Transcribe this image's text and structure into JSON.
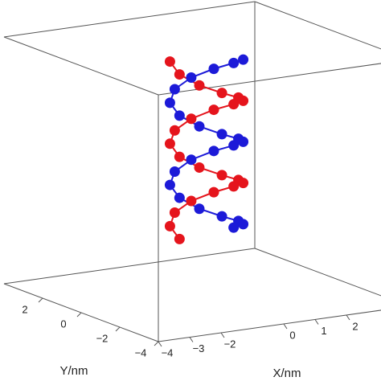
{
  "chart_data": {
    "type": "scatter3d",
    "xlabel": "X/nm",
    "ylabel": "Y/nm",
    "xlim": [
      -4,
      4
    ],
    "ylim": [
      -4,
      4
    ],
    "zlim": [
      0,
      10
    ],
    "xticks": [
      {
        "value": -4,
        "label": "−4"
      },
      {
        "value": -3,
        "label": "−3"
      },
      {
        "value": -2,
        "label": "−2"
      },
      0,
      1,
      2
    ],
    "yticks": [
      2,
      0,
      {
        "value": -2,
        "label": "−2"
      },
      {
        "value": -4,
        "label": "−4"
      }
    ],
    "series": [
      {
        "color": "#1c1ad8",
        "x": [
          0.91,
          0.98,
          0.68,
          0.12,
          -0.48,
          -0.91,
          -0.98,
          -0.68,
          -0.12,
          0.48,
          0.91,
          0.98,
          0.68,
          0.12,
          -0.48,
          -0.91,
          -0.98,
          -0.68,
          -0.12,
          0.48,
          0.91,
          0.98
        ],
        "y": [
          -0.42,
          0.19,
          0.73,
          0.99,
          0.87,
          0.42,
          -0.19,
          -0.73,
          -0.99,
          -0.87,
          -0.42,
          0.19,
          0.73,
          0.99,
          0.87,
          0.42,
          -0.19,
          -0.73,
          -0.99,
          -0.87,
          -0.42,
          0.19
        ],
        "z": [
          9.5,
          9.17,
          8.83,
          8.5,
          8.17,
          7.83,
          7.5,
          7.17,
          6.83,
          6.5,
          6.17,
          5.83,
          5.5,
          5.17,
          4.83,
          4.5,
          4.17,
          3.83,
          3.5,
          3.17,
          2.83,
          2.5
        ]
      },
      {
        "color": "#e5141c",
        "x": [
          -0.91,
          -0.98,
          -0.68,
          -0.12,
          0.48,
          0.91,
          0.98,
          0.68,
          0.12,
          -0.48,
          -0.91,
          -0.98,
          -0.68,
          -0.12,
          0.48,
          0.91,
          0.98,
          0.68,
          0.12,
          -0.48,
          -0.91,
          -0.98
        ],
        "y": [
          0.42,
          -0.19,
          -0.73,
          -0.99,
          -0.87,
          -0.42,
          0.19,
          0.73,
          0.99,
          0.87,
          0.42,
          -0.19,
          -0.73,
          -0.99,
          -0.87,
          -0.42,
          0.19,
          0.73,
          0.99,
          0.87,
          0.42,
          -0.19
        ],
        "z": [
          9.5,
          9.17,
          8.83,
          8.5,
          8.17,
          7.83,
          7.5,
          7.17,
          6.83,
          6.5,
          6.17,
          5.83,
          5.5,
          5.17,
          4.83,
          4.5,
          4.17,
          3.83,
          3.5,
          3.17,
          2.83,
          2.5
        ]
      }
    ]
  }
}
